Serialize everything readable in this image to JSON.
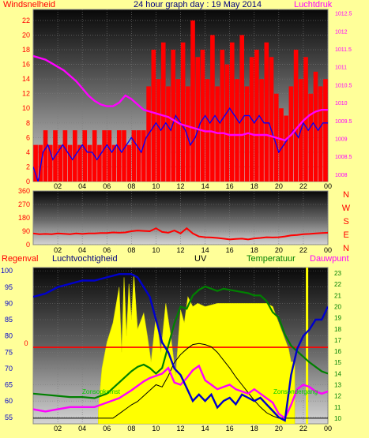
{
  "header": {
    "title": "24 hour graph day : 19 May 2014",
    "left_label": "Windsnelheid",
    "right_label": "Luchtdruk"
  },
  "colors": {
    "background": "#ffff99",
    "wind": "#ff0000",
    "gust": "#0000ff",
    "pressure": "#ff00ff",
    "direction": "#ff0000",
    "humidity": "#0000cc",
    "temperature": "#008000",
    "dewpoint": "#ff00ff",
    "uv": "#000000",
    "solar": "#ffff00",
    "rain": "#ff0000"
  },
  "chart_data": [
    {
      "type": "bar",
      "name_hint": "wind",
      "title": "24 hour graph day : 19 May 2014",
      "x_ticks": [
        "02",
        "04",
        "06",
        "08",
        "10",
        "12",
        "14",
        "16",
        "18",
        "20",
        "22",
        "00"
      ],
      "y_ticks_left": [
        0,
        2,
        4,
        6,
        8,
        10,
        12,
        14,
        16,
        18,
        20,
        22
      ],
      "y_ticks_right": [
        "1008",
        "1008.5",
        "1009",
        "1009.5",
        "1010",
        "1010.5",
        "1011",
        "1011.5",
        "1012",
        "1012.5"
      ],
      "ylim_left": [
        0,
        23.5
      ],
      "ylim_right": [
        1007.8,
        1012.6
      ],
      "xlim": [
        0,
        24
      ],
      "ylabel_left": "Windsnelheid",
      "ylabel_right": "Luchtdruk",
      "series": [
        {
          "role": "wind_speed",
          "style": "bars",
          "x": [
            0.2,
            0.6,
            1,
            1.4,
            1.8,
            2.2,
            2.6,
            3,
            3.4,
            3.8,
            4.2,
            4.6,
            5,
            5.4,
            5.8,
            6.2,
            6.6,
            7,
            7.4,
            7.8,
            8.2,
            8.6,
            9,
            9.4,
            9.8,
            10.2,
            10.6,
            11,
            11.4,
            11.8,
            12.2,
            12.6,
            13,
            13.4,
            13.8,
            14.2,
            14.6,
            15,
            15.4,
            15.8,
            16.2,
            16.6,
            17,
            17.4,
            17.8,
            18.2,
            18.6,
            19,
            19.4,
            19.8,
            20.2,
            20.6,
            21,
            21.4,
            21.8,
            22.2,
            22.6,
            23,
            23.4,
            23.8
          ],
          "values": [
            5,
            5,
            7,
            5,
            7,
            5,
            7,
            5,
            7,
            5,
            7,
            5,
            7,
            5,
            7,
            7,
            5,
            7,
            7,
            5,
            7,
            7,
            7,
            13,
            18,
            14,
            19,
            13,
            18,
            14,
            19,
            13,
            22,
            17,
            18,
            14,
            20,
            13,
            18,
            16,
            19,
            14,
            20,
            13,
            17,
            18,
            14,
            19,
            17,
            12,
            10,
            9,
            13,
            18,
            14,
            17,
            12,
            15,
            13,
            14
          ]
        },
        {
          "role": "gust",
          "style": "line",
          "x": [
            0,
            0.4,
            0.8,
            1.2,
            1.6,
            2,
            2.4,
            2.8,
            3.2,
            3.6,
            4,
            4.4,
            4.8,
            5.2,
            5.6,
            6,
            6.4,
            6.8,
            7.2,
            7.6,
            8,
            8.4,
            8.8,
            9.2,
            9.6,
            10,
            10.4,
            10.8,
            11.2,
            11.6,
            12,
            12.4,
            12.8,
            13.2,
            13.6,
            14,
            14.4,
            14.8,
            15.2,
            15.6,
            16,
            16.4,
            16.8,
            17.2,
            17.6,
            18,
            18.4,
            18.8,
            19.2,
            19.6,
            20,
            20.4,
            20.8,
            21.2,
            21.6,
            22,
            22.4,
            22.8,
            23.2,
            23.6,
            24
          ],
          "values": [
            2,
            0,
            4,
            5,
            3,
            4,
            5,
            4,
            3,
            4,
            5,
            4,
            4,
            3,
            4,
            5,
            4,
            5,
            4,
            5,
            6,
            5,
            4,
            6,
            7,
            8,
            7,
            8,
            7,
            9,
            8,
            7,
            5,
            6,
            8,
            9,
            8,
            9,
            8,
            9,
            10,
            9,
            8,
            9,
            9,
            8,
            9,
            8,
            8,
            6,
            4,
            5,
            6,
            7,
            6,
            8,
            7,
            8,
            7,
            8,
            8
          ]
        },
        {
          "role": "pressure",
          "style": "line",
          "axis": "right",
          "x": [
            0,
            0.5,
            1,
            1.5,
            2,
            2.5,
            3,
            3.5,
            4,
            4.5,
            5,
            5.5,
            6,
            6.5,
            7,
            7.5,
            8,
            8.5,
            9,
            9.5,
            10,
            10.5,
            11,
            11.5,
            12,
            12.5,
            13,
            13.5,
            14,
            14.5,
            15,
            15.5,
            16,
            16.5,
            17,
            17.5,
            18,
            18.5,
            19,
            19.5,
            20,
            20.5,
            21,
            21.5,
            22,
            22.5,
            23,
            23.5,
            24
          ],
          "values": [
            1011.3,
            1011.25,
            1011.2,
            1011.1,
            1011,
            1010.9,
            1010.75,
            1010.6,
            1010.4,
            1010.2,
            1010.05,
            1009.95,
            1009.9,
            1009.9,
            1010,
            1010.2,
            1010.1,
            1009.95,
            1009.8,
            1009.75,
            1009.7,
            1009.65,
            1009.6,
            1009.5,
            1009.4,
            1009.35,
            1009.3,
            1009.25,
            1009.2,
            1009.2,
            1009.15,
            1009.15,
            1009.1,
            1009.1,
            1009.1,
            1009.15,
            1009.1,
            1009.1,
            1009.1,
            1009.05,
            1009.0,
            1008.95,
            1009.1,
            1009.3,
            1009.5,
            1009.65,
            1009.75,
            1009.8,
            1009.8
          ]
        }
      ]
    },
    {
      "type": "line",
      "name_hint": "wind-direction",
      "x_ticks": [
        "02",
        "04",
        "06",
        "08",
        "10",
        "12",
        "14",
        "16",
        "18",
        "20",
        "22",
        "00"
      ],
      "y_ticks": [
        0,
        90,
        180,
        270,
        360
      ],
      "ylim": [
        0,
        360
      ],
      "xlim": [
        0,
        24
      ],
      "compass_labels": [
        "N",
        "W",
        "S",
        "E",
        "N"
      ],
      "series": [
        {
          "role": "direction",
          "x": [
            0,
            0.5,
            1,
            1.5,
            2,
            2.5,
            3,
            3.5,
            4,
            4.5,
            5,
            5.5,
            6,
            6.5,
            7,
            7.5,
            8,
            8.5,
            9,
            9.5,
            10,
            10.5,
            11,
            11.5,
            12,
            12.5,
            13,
            13.5,
            14,
            14.5,
            15,
            15.5,
            16,
            16.5,
            17,
            17.5,
            18,
            18.5,
            19,
            19.5,
            20,
            20.5,
            21,
            21.5,
            22,
            22.5,
            23,
            23.5,
            24
          ],
          "values": [
            75,
            70,
            72,
            70,
            75,
            73,
            70,
            75,
            72,
            75,
            75,
            78,
            78,
            82,
            80,
            82,
            90,
            95,
            92,
            90,
            110,
            85,
            80,
            95,
            75,
            110,
            75,
            55,
            50,
            48,
            45,
            40,
            35,
            38,
            40,
            35,
            42,
            45,
            50,
            48,
            50,
            55,
            62,
            65,
            70,
            72,
            75,
            78,
            80
          ]
        }
      ]
    },
    {
      "type": "line",
      "name_hint": "weather",
      "x_ticks": [
        "02",
        "04",
        "06",
        "08",
        "10",
        "12",
        "14",
        "16",
        "18",
        "20",
        "22",
        "00"
      ],
      "y_ticks_left": [
        55,
        60,
        65,
        70,
        75,
        80,
        85,
        90,
        95,
        100
      ],
      "y_ticks_right": [
        10,
        11,
        12,
        13,
        14,
        15,
        16,
        17,
        18,
        19,
        20,
        21,
        22,
        23
      ],
      "ylim_left": [
        53,
        101
      ],
      "ylim_right": [
        9.5,
        23.5
      ],
      "xlim": [
        0,
        24
      ],
      "rain_ref": "0",
      "labels": {
        "rain": "Regenval",
        "humidity": "Luchtvochtigheid",
        "uv": "UV",
        "temperature": "Temperatuur",
        "dewpoint": "Dauwpunt",
        "sunrise": "Zonsopkomst",
        "sunset": "Zonsondergang"
      },
      "sunrise_x": 5.3,
      "sunset_x": 21.3,
      "series": [
        {
          "role": "solar",
          "style": "area",
          "axis": "left",
          "x": [
            5.3,
            5.6,
            6,
            6.5,
            7,
            7.2,
            7.4,
            7.6,
            7.8,
            8,
            8.2,
            8.5,
            9,
            9.3,
            9.6,
            10,
            10.4,
            10.8,
            11.2,
            11.6,
            12,
            12.3,
            12.6,
            13,
            13.4,
            14,
            15,
            16,
            17,
            18,
            19,
            19.5,
            20,
            20.4,
            20.8,
            21,
            21.3
          ],
          "values": [
            57,
            70,
            78,
            84,
            95,
            75,
            98,
            80,
            96,
            85,
            99,
            82,
            87,
            80,
            72,
            86,
            75,
            90,
            80,
            68,
            88,
            84,
            92,
            89,
            90,
            89,
            90,
            90,
            90,
            90,
            90,
            89,
            84,
            80,
            76,
            72,
            72
          ]
        },
        {
          "role": "humidity",
          "style": "line",
          "axis": "left",
          "x": [
            0,
            1,
            2,
            3,
            4,
            5,
            6,
            7,
            7.5,
            8,
            8.5,
            9,
            9.5,
            10,
            10.5,
            11,
            11.5,
            12,
            12.5,
            13,
            13.5,
            14,
            14.5,
            15,
            15.5,
            16,
            16.5,
            17,
            17.5,
            18,
            18.5,
            19,
            19.5,
            20,
            20.5,
            21,
            21.5,
            22,
            22.5,
            23,
            23.5,
            24
          ],
          "values": [
            92,
            93,
            95,
            96,
            97,
            97,
            98,
            99,
            99,
            99,
            98,
            95,
            92,
            85,
            78,
            75,
            70,
            68,
            64,
            60,
            62,
            60,
            62,
            58,
            60,
            61,
            59,
            62,
            61,
            60,
            61,
            59,
            57,
            55,
            54,
            68,
            76,
            80,
            82,
            85,
            85,
            89
          ]
        },
        {
          "role": "temperature",
          "style": "line",
          "axis": "right",
          "x": [
            0,
            1,
            2,
            3,
            4,
            5,
            6,
            7,
            8,
            8.5,
            9,
            9.5,
            10,
            10.5,
            11,
            11.5,
            12,
            12.5,
            13,
            13.5,
            14,
            14.5,
            15,
            15.5,
            16,
            16.5,
            17,
            17.5,
            18,
            18.5,
            19,
            19.5,
            20,
            20.5,
            21,
            21.5,
            22,
            22.5,
            23,
            23.5,
            24
          ],
          "values": [
            12.2,
            12.1,
            12.0,
            11.9,
            11.9,
            11.8,
            12.2,
            13.2,
            14.2,
            14.6,
            14.8,
            14.5,
            14.0,
            14.5,
            16.5,
            18.5,
            20.0,
            19.8,
            21.0,
            21.5,
            21.8,
            21.6,
            21.4,
            21.6,
            21.5,
            21.4,
            21.3,
            21.2,
            21.0,
            21.0,
            20.5,
            19.5,
            19.0,
            17.5,
            16.5,
            16.0,
            15.5,
            15.0,
            14.6,
            14.2,
            14.0
          ]
        },
        {
          "role": "dewpoint",
          "style": "line",
          "axis": "right",
          "x": [
            0,
            1,
            2,
            3,
            4,
            5,
            6,
            7,
            8,
            9,
            9.5,
            10,
            10.5,
            11,
            11.5,
            12,
            12.5,
            13,
            13.5,
            14,
            14.5,
            15,
            15.5,
            16,
            16.5,
            17,
            17.5,
            18,
            18.5,
            19,
            19.5,
            20,
            20.5,
            21,
            21.5,
            22,
            22.5,
            23,
            23.5,
            24
          ],
          "values": [
            10.8,
            10.6,
            10.8,
            11.0,
            11.0,
            11.0,
            11.4,
            11.8,
            12.5,
            13.3,
            13.6,
            13.8,
            14.0,
            14.5,
            13.2,
            13.0,
            13.6,
            14.3,
            14.7,
            13.4,
            13.0,
            12.6,
            12.8,
            13.0,
            12.6,
            12.4,
            12.2,
            12.6,
            12.2,
            11.8,
            11.4,
            10.4,
            10.0,
            11.2,
            12.6,
            13.0,
            12.8,
            12.4,
            12.2,
            12.4
          ]
        },
        {
          "role": "uv",
          "style": "line",
          "axis": "right",
          "x": [
            0,
            5.5,
            6.5,
            7,
            7.5,
            8,
            8.5,
            9,
            9.5,
            10,
            10.5,
            11,
            11.5,
            12,
            12.5,
            13,
            13.5,
            14,
            14.5,
            15,
            15.5,
            16,
            16.5,
            17,
            17.5,
            18,
            18.5,
            19,
            19.5,
            20,
            21,
            24
          ],
          "values": [
            10,
            10,
            10,
            10.4,
            10.8,
            11.2,
            11.5,
            12.0,
            12.5,
            13.0,
            12.8,
            13.8,
            15.0,
            15.7,
            16.2,
            16.6,
            16.7,
            16.6,
            16.4,
            15.9,
            15.2,
            14.5,
            13.7,
            13.0,
            12.3,
            11.6,
            11.0,
            10.5,
            10.2,
            10,
            10,
            10
          ]
        }
      ]
    }
  ]
}
